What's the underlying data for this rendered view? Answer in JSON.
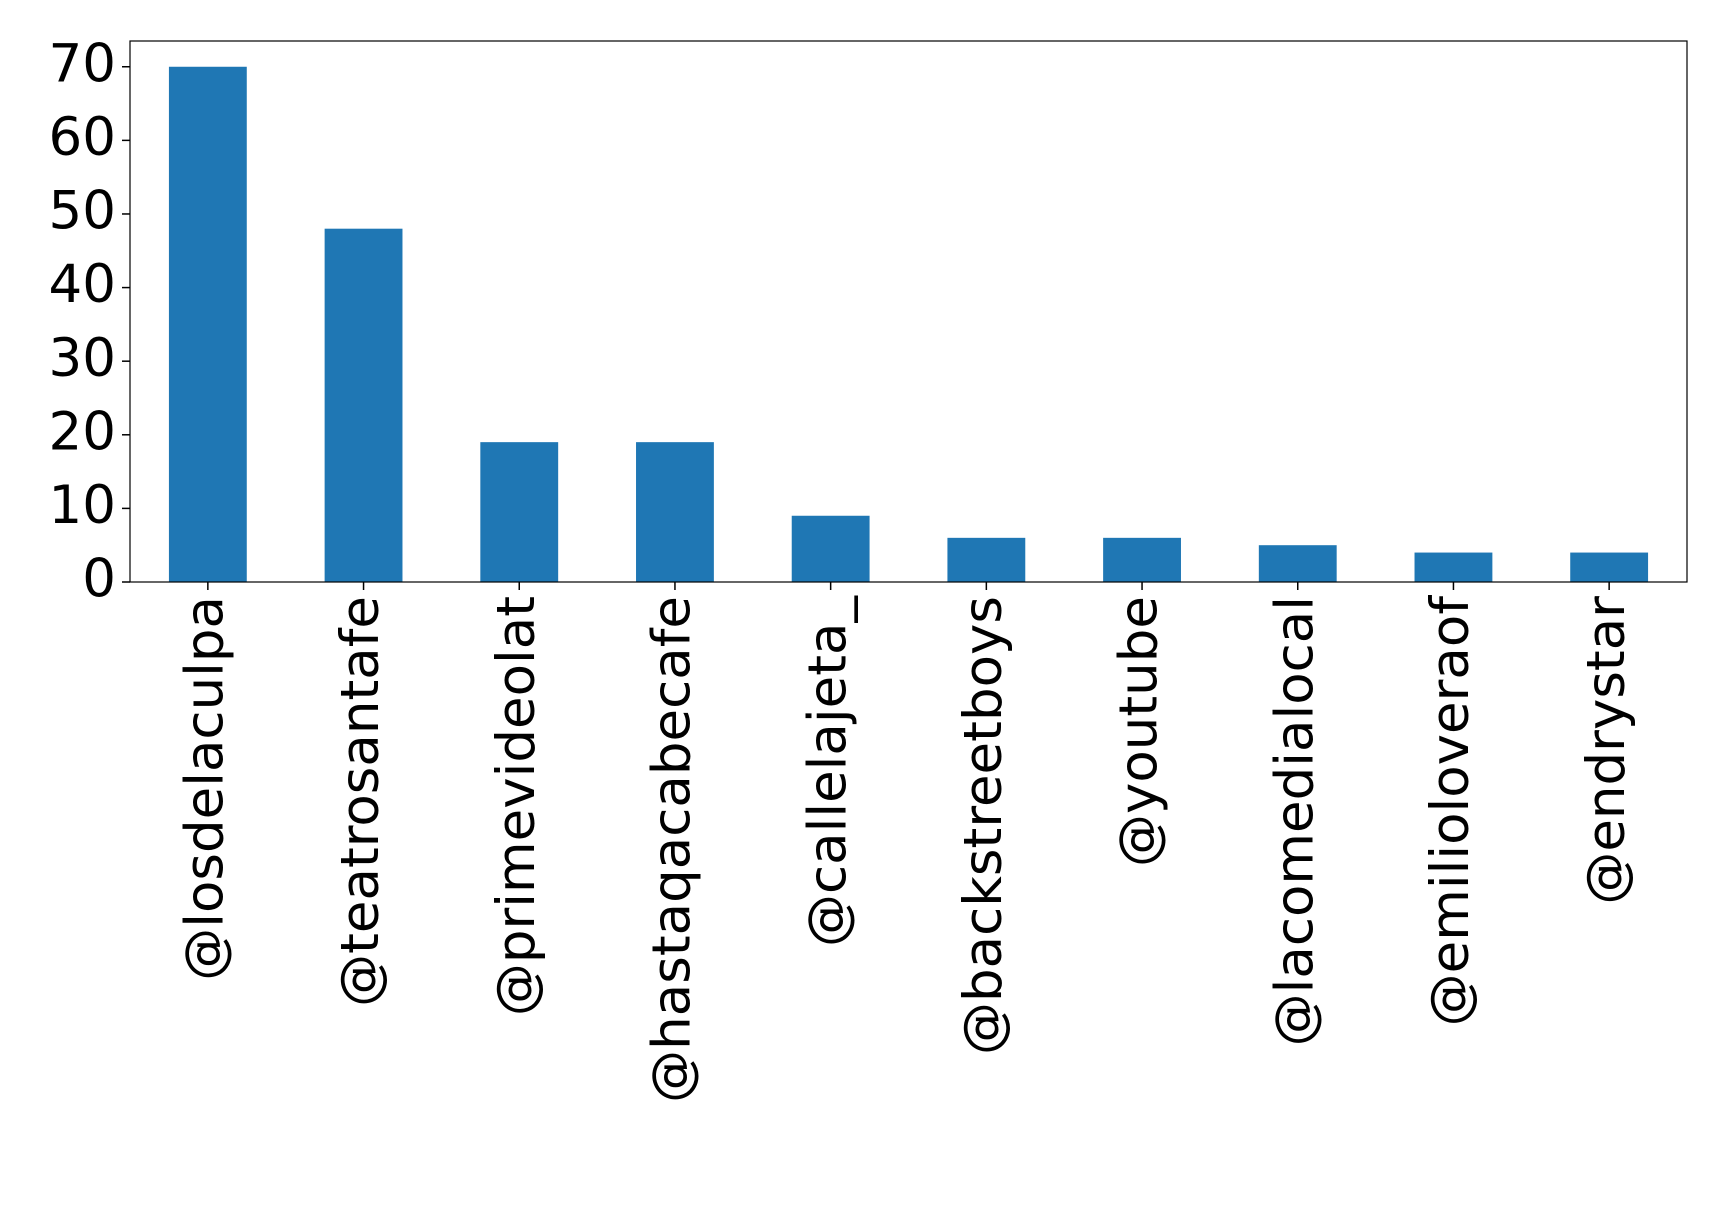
{
  "chart_data": {
    "type": "bar",
    "categories": [
      "@losdelaculpa",
      "@teatrosantafe",
      "@primevideolat",
      "@hastaqacabecafe",
      "@callelajeta_",
      "@backstreetboys",
      "@youtube",
      "@lacomedialocal",
      "@emilioloveraof",
      "@endrystar"
    ],
    "values": [
      70,
      48,
      19,
      19,
      9,
      6,
      6,
      5,
      4,
      4
    ],
    "color": "#1f77b4",
    "ylim": [
      0,
      73.5
    ],
    "yticks": [
      0,
      10,
      20,
      30,
      40,
      50,
      60,
      70
    ],
    "grid": false
  }
}
